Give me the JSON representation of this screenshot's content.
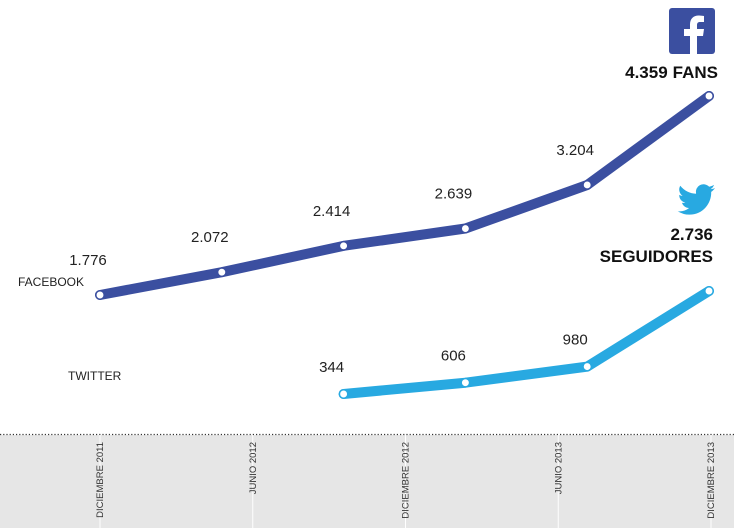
{
  "chart_data": {
    "type": "line",
    "categories": [
      null,
      null,
      null,
      null,
      null,
      null
    ],
    "x_axis_labels": [
      "DICIEMBRE 2011",
      "JUNIO 2012",
      "DICIEMBRE 2012",
      "JUNIO 2013",
      "DICIEMBRE 2013"
    ],
    "series": [
      {
        "name": "FACEBOOK",
        "color": "#3b4fa0",
        "values": [
          1776,
          2072,
          2414,
          2639,
          3204,
          4359
        ],
        "value_labels": [
          "1.776",
          "2.072",
          "2.414",
          "2.639",
          "3.204",
          "4.359"
        ],
        "unit_label": "FANS"
      },
      {
        "name": "TWITTER",
        "color": "#28a9e1",
        "values": [
          null,
          null,
          344,
          606,
          980,
          2736
        ],
        "value_labels": [
          null,
          null,
          "344",
          "606",
          "980",
          "2.736"
        ],
        "unit_label": "SEGUIDORES"
      }
    ]
  }
}
